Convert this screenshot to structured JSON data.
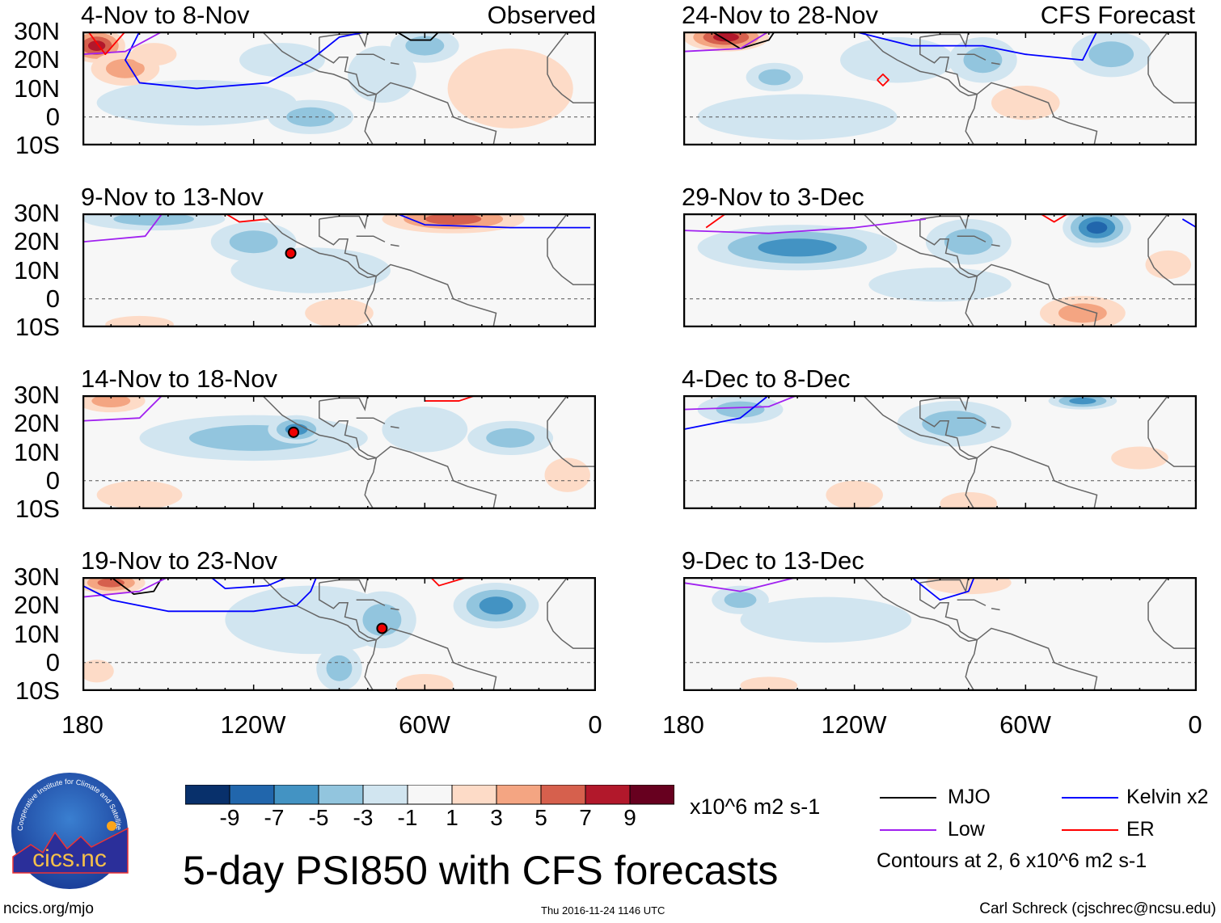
{
  "figure_title": "5-day PSI850 with CFS forecasts",
  "colors": {
    "bins": [
      "#08306b",
      "#2166ac",
      "#4393c3",
      "#92c5de",
      "#d1e5f0",
      "#f7f7f7",
      "#fddbc7",
      "#f4a582",
      "#d6604d",
      "#b2182b",
      "#67001f"
    ],
    "land": "#666666",
    "MJO": "#000000",
    "Kelvin": "#0000ff",
    "Low": "#a020f0",
    "ER": "#ff0000"
  },
  "colorbar": {
    "labels": [
      "-9",
      "-7",
      "-5",
      "-3",
      "-1",
      "1",
      "3",
      "5",
      "7",
      "9"
    ],
    "units": "x10^6 m2 s-1"
  },
  "axes": {
    "y_labels": [
      "30N",
      "20N",
      "10N",
      "0",
      "10S"
    ],
    "x_labels": [
      "180",
      "120W",
      "60W",
      "0"
    ]
  },
  "legend": {
    "items": [
      {
        "name": "MJO",
        "color": "#000000"
      },
      {
        "name": "Kelvin x2",
        "color": "#0000ff"
      },
      {
        "name": "Low",
        "color": "#a020f0"
      },
      {
        "name": "ER",
        "color": "#ff0000"
      }
    ],
    "contours_note": "Contours at 2, 6 x10^6 m2 s-1"
  },
  "footer": {
    "url": "ncics.org/mjo",
    "timestamp": "Thu 2016-11-24 1146 UTC",
    "author": "Carl Schreck (cjschrec@ncsu.edu)"
  },
  "logo": {
    "text": "cics.nc",
    "ring_text": "Cooperative Institute for Climate and Satellites"
  },
  "column_labels": {
    "left": "Observed",
    "right": "CFS Forecast"
  },
  "chart_data": {
    "type": "heatmap",
    "variable": "PSI850 anomaly",
    "units": "x10^6 m2 s-1",
    "lon_range": [
      -180,
      0
    ],
    "lat_range": [
      -10,
      30
    ],
    "levels": [
      -9,
      -7,
      -5,
      -3,
      -1,
      1,
      3,
      5,
      7,
      9
    ],
    "panels": [
      {
        "title": "4-Nov to 8-Nov",
        "source": "Observed",
        "blobs": [
          [
            -140,
            5,
            35,
            8,
            -2
          ],
          [
            -175,
            25,
            10,
            6,
            8
          ],
          [
            -165,
            17,
            12,
            6,
            4
          ],
          [
            -155,
            22,
            8,
            4,
            2
          ],
          [
            -100,
            0,
            15,
            6,
            -4
          ],
          [
            -75,
            15,
            12,
            10,
            -3
          ],
          [
            -110,
            20,
            15,
            6,
            -2
          ],
          [
            -30,
            10,
            22,
            14,
            3
          ],
          [
            -60,
            25,
            12,
            6,
            -4
          ]
        ],
        "contours": [
          {
            "type": "Kelvin",
            "pts": [
              [
                -160,
                30
              ],
              [
                -165,
                20
              ],
              [
                -160,
                12
              ],
              [
                -140,
                10
              ],
              [
                -115,
                12
              ],
              [
                -100,
                20
              ],
              [
                -90,
                28
              ],
              [
                -80,
                30
              ]
            ]
          },
          {
            "type": "Low",
            "pts": [
              [
                -180,
                22
              ],
              [
                -165,
                23
              ],
              [
                -152,
                30
              ]
            ]
          },
          {
            "type": "ER",
            "pts": [
              [
                -178,
                30
              ],
              [
                -172,
                22
              ],
              [
                -165,
                30
              ]
            ]
          },
          {
            "type": "MJO",
            "pts": [
              [
                -70,
                30
              ],
              [
                -65,
                27
              ],
              [
                -58,
                27
              ],
              [
                -55,
                30
              ]
            ]
          }
        ],
        "storms": []
      },
      {
        "title": "24-Nov to 28-Nov",
        "source": "CFS Forecast",
        "blobs": [
          [
            -140,
            0,
            35,
            8,
            -2
          ],
          [
            -165,
            28,
            15,
            5,
            8
          ],
          [
            -148,
            14,
            10,
            5,
            -5
          ],
          [
            -105,
            20,
            20,
            8,
            -3
          ],
          [
            -75,
            20,
            12,
            8,
            -4
          ],
          [
            -30,
            22,
            14,
            8,
            -5
          ],
          [
            -60,
            5,
            12,
            6,
            2
          ]
        ],
        "contours": [
          {
            "type": "MJO",
            "pts": [
              [
                -170,
                30
              ],
              [
                -160,
                24
              ],
              [
                -150,
                27
              ],
              [
                -148,
                30
              ]
            ]
          },
          {
            "type": "Kelvin",
            "pts": [
              [
                -120,
                30
              ],
              [
                -100,
                25
              ],
              [
                -75,
                25
              ],
              [
                -60,
                22
              ],
              [
                -40,
                20
              ],
              [
                -35,
                30
              ]
            ]
          },
          {
            "type": "Low",
            "pts": [
              [
                -180,
                23
              ],
              [
                -160,
                24
              ],
              [
                -150,
                30
              ]
            ]
          },
          {
            "type": "ER",
            "pts": [
              [
                -112,
                13
              ],
              [
                -110,
                15
              ],
              [
                -108,
                13
              ],
              [
                -110,
                11
              ],
              [
                -112,
                13
              ]
            ]
          }
        ],
        "storms": []
      },
      {
        "title": "9-Nov to 13-Nov",
        "source": "Observed",
        "blobs": [
          [
            -100,
            10,
            28,
            8,
            -2
          ],
          [
            -155,
            28,
            25,
            4,
            -5
          ],
          [
            -120,
            20,
            15,
            7,
            -4
          ],
          [
            -50,
            28,
            25,
            5,
            7
          ],
          [
            -90,
            -5,
            12,
            5,
            2
          ],
          [
            -160,
            -9,
            12,
            3,
            2
          ]
        ],
        "contours": [
          {
            "type": "Low",
            "pts": [
              [
                -180,
                20
              ],
              [
                -158,
                22
              ],
              [
                -152,
                30
              ]
            ]
          },
          {
            "type": "ER",
            "pts": [
              [
                -130,
                30
              ],
              [
                -125,
                27
              ],
              [
                -115,
                28
              ]
            ]
          },
          {
            "type": "Kelvin",
            "pts": [
              [
                -70,
                30
              ],
              [
                -60,
                26
              ],
              [
                -30,
                25
              ],
              [
                -2,
                25
              ]
            ]
          }
        ],
        "storms": [
          [
            -107,
            16
          ]
        ]
      },
      {
        "title": "29-Nov to 3-Dec",
        "source": "CFS Forecast",
        "blobs": [
          [
            -90,
            5,
            25,
            6,
            -2
          ],
          [
            -140,
            18,
            35,
            8,
            -7
          ],
          [
            -80,
            20,
            15,
            8,
            -4
          ],
          [
            -35,
            25,
            12,
            7,
            -9
          ],
          [
            -40,
            -5,
            15,
            6,
            4
          ],
          [
            -10,
            12,
            8,
            5,
            3
          ]
        ],
        "contours": [
          {
            "type": "ER",
            "pts": [
              [
                -172,
                25
              ],
              [
                -165,
                30
              ]
            ]
          },
          {
            "type": "ER",
            "pts": [
              [
                -45,
                30
              ],
              [
                -50,
                27
              ],
              [
                -55,
                30
              ]
            ]
          },
          {
            "type": "Low",
            "pts": [
              [
                -180,
                24
              ],
              [
                -150,
                23
              ],
              [
                -120,
                25
              ],
              [
                -95,
                28
              ]
            ]
          },
          {
            "type": "Kelvin",
            "pts": [
              [
                -5,
                28
              ],
              [
                0,
                25
              ]
            ]
          }
        ],
        "storms": []
      },
      {
        "title": "14-Nov to 18-Nov",
        "source": "Observed",
        "blobs": [
          [
            -120,
            15,
            40,
            8,
            -4
          ],
          [
            -105,
            18,
            10,
            5,
            -6
          ],
          [
            -60,
            18,
            15,
            8,
            -3
          ],
          [
            -30,
            15,
            15,
            6,
            -4
          ],
          [
            -170,
            28,
            12,
            4,
            4
          ],
          [
            -160,
            -5,
            15,
            5,
            2
          ],
          [
            -10,
            2,
            8,
            6,
            2
          ]
        ],
        "contours": [
          {
            "type": "Low",
            "pts": [
              [
                -180,
                21
              ],
              [
                -160,
                22
              ],
              [
                -152,
                30
              ]
            ]
          },
          {
            "type": "ER",
            "pts": [
              [
                -60,
                28
              ],
              [
                -48,
                28
              ],
              [
                -42,
                30
              ]
            ]
          }
        ],
        "storms": [
          [
            -106,
            17
          ]
        ]
      },
      {
        "title": "4-Dec to 8-Dec",
        "source": "CFS Forecast",
        "blobs": [
          [
            -160,
            25,
            15,
            5,
            -4
          ],
          [
            -85,
            20,
            20,
            8,
            -4
          ],
          [
            -40,
            28,
            12,
            3,
            -7
          ],
          [
            -120,
            -5,
            10,
            5,
            2
          ],
          [
            -80,
            -8,
            10,
            4,
            2
          ],
          [
            -20,
            8,
            10,
            4,
            2
          ]
        ],
        "contours": [
          {
            "type": "Low",
            "pts": [
              [
                -180,
                25
              ],
              [
                -150,
                26
              ],
              [
                -140,
                30
              ]
            ]
          },
          {
            "type": "Kelvin",
            "pts": [
              [
                -180,
                18
              ],
              [
                -160,
                22
              ],
              [
                -150,
                30
              ]
            ]
          }
        ],
        "storms": []
      },
      {
        "title": "19-Nov to 23-Nov",
        "source": "Observed",
        "blobs": [
          [
            -100,
            15,
            30,
            12,
            -2
          ],
          [
            -170,
            28,
            12,
            4,
            6
          ],
          [
            -35,
            20,
            15,
            8,
            -7
          ],
          [
            -75,
            15,
            12,
            10,
            -5
          ],
          [
            -90,
            -2,
            8,
            8,
            -5
          ],
          [
            -60,
            -8,
            10,
            4,
            2
          ],
          [
            -175,
            -3,
            6,
            4,
            2
          ]
        ],
        "contours": [
          {
            "type": "MJO",
            "pts": [
              [
                -170,
                30
              ],
              [
                -162,
                24
              ],
              [
                -155,
                25
              ],
              [
                -152,
                30
              ]
            ]
          },
          {
            "type": "Low",
            "pts": [
              [
                -180,
                23
              ],
              [
                -160,
                25
              ],
              [
                -150,
                30
              ]
            ]
          },
          {
            "type": "Kelvin",
            "pts": [
              [
                -180,
                27
              ],
              [
                -170,
                22
              ],
              [
                -150,
                18
              ],
              [
                -120,
                18
              ],
              [
                -105,
                20
              ],
              [
                -100,
                25
              ],
              [
                -98,
                30
              ]
            ]
          },
          {
            "type": "Kelvin",
            "pts": [
              [
                -135,
                30
              ],
              [
                -130,
                26
              ],
              [
                -115,
                27
              ],
              [
                -108,
                30
              ]
            ]
          },
          {
            "type": "ER",
            "pts": [
              [
                -58,
                30
              ],
              [
                -55,
                27
              ],
              [
                -45,
                30
              ]
            ]
          }
        ],
        "storms": [
          [
            -75,
            12
          ]
        ]
      },
      {
        "title": "9-Dec to 13-Dec",
        "source": "CFS Forecast",
        "blobs": [
          [
            -130,
            15,
            30,
            8,
            -2
          ],
          [
            -160,
            22,
            10,
            5,
            -5
          ],
          [
            -80,
            28,
            15,
            4,
            3
          ],
          [
            -150,
            -8,
            10,
            3,
            2
          ]
        ],
        "contours": [
          {
            "type": "Low",
            "pts": [
              [
                -180,
                28
              ],
              [
                -160,
                25
              ],
              [
                -140,
                30
              ]
            ]
          },
          {
            "type": "Kelvin",
            "pts": [
              [
                -100,
                30
              ],
              [
                -90,
                22
              ],
              [
                -80,
                25
              ],
              [
                -78,
                30
              ]
            ]
          }
        ],
        "storms": []
      }
    ]
  }
}
